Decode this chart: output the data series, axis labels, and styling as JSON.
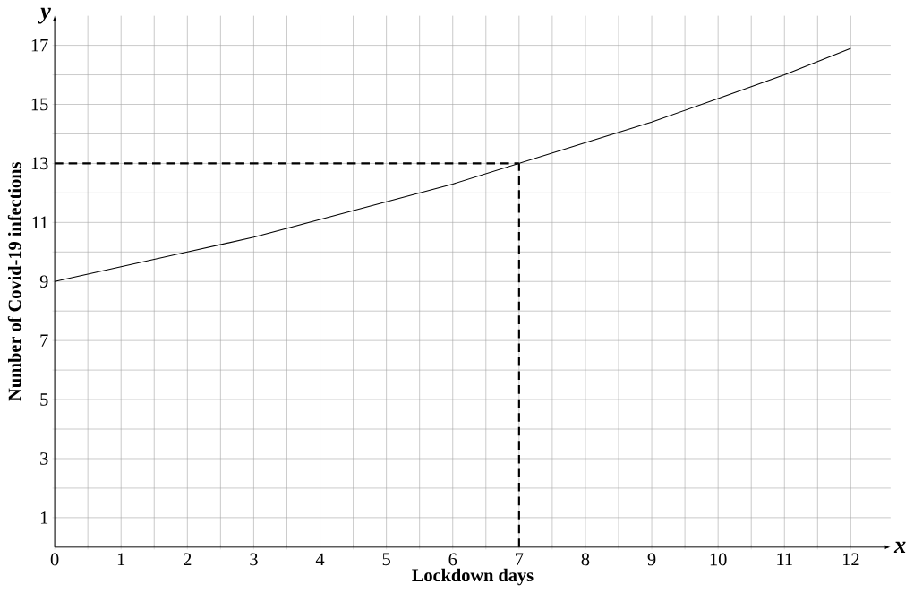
{
  "chart_data": {
    "type": "line",
    "xlabel": "Lockdown days",
    "ylabel": "Number of Covid-19 infections",
    "annotations": [
      "x",
      "y"
    ],
    "x": [
      0,
      1,
      2,
      3,
      4,
      5,
      6,
      7,
      8,
      9,
      10,
      11,
      12
    ],
    "series": [
      {
        "color": "#000000",
        "values": [
          9,
          9.5,
          10,
          10.5,
          11.1,
          11.7,
          12.3,
          13,
          13.7,
          14.4,
          15.2,
          16,
          16.9
        ]
      }
    ],
    "xlim": [
      0,
      12.6
    ],
    "ylim": [
      0,
      18
    ],
    "xticks": [
      0,
      {
        "value": 0.5,
        "label": null
      },
      1,
      {
        "value": 1.5,
        "label": null
      },
      2,
      {
        "value": 2.5,
        "label": null
      },
      3,
      {
        "value": 3.5,
        "label": null
      },
      4,
      {
        "value": 4.5,
        "label": null
      },
      5,
      {
        "value": 5.5,
        "label": null
      },
      6,
      {
        "value": 6.5,
        "label": null
      },
      7,
      {
        "value": 7.5,
        "label": null
      },
      8,
      {
        "value": 8.5,
        "label": null
      },
      9,
      {
        "value": 9.5,
        "label": null
      },
      10,
      {
        "value": 10.5,
        "label": null
      },
      11,
      {
        "value": 11.5,
        "label": null
      },
      12
    ],
    "yticks": [
      1,
      {
        "value": 2,
        "label": null
      },
      3,
      {
        "value": 4,
        "label": null
      },
      5,
      {
        "value": 6,
        "label": null
      },
      7,
      {
        "value": 8,
        "label": null
      },
      9,
      {
        "value": 10,
        "label": null
      },
      11,
      {
        "value": 12,
        "label": null
      },
      13,
      {
        "value": 14,
        "label": null
      },
      15,
      {
        "value": 16,
        "label": null
      },
      17
    ],
    "grid": true,
    "ref_lines": [
      {
        "axis": "x",
        "value": 7,
        "line_style": "dashed",
        "color": "#000000"
      },
      {
        "axis": "y",
        "value": 13,
        "line_style": "dashed",
        "color": "#000000"
      }
    ]
  }
}
